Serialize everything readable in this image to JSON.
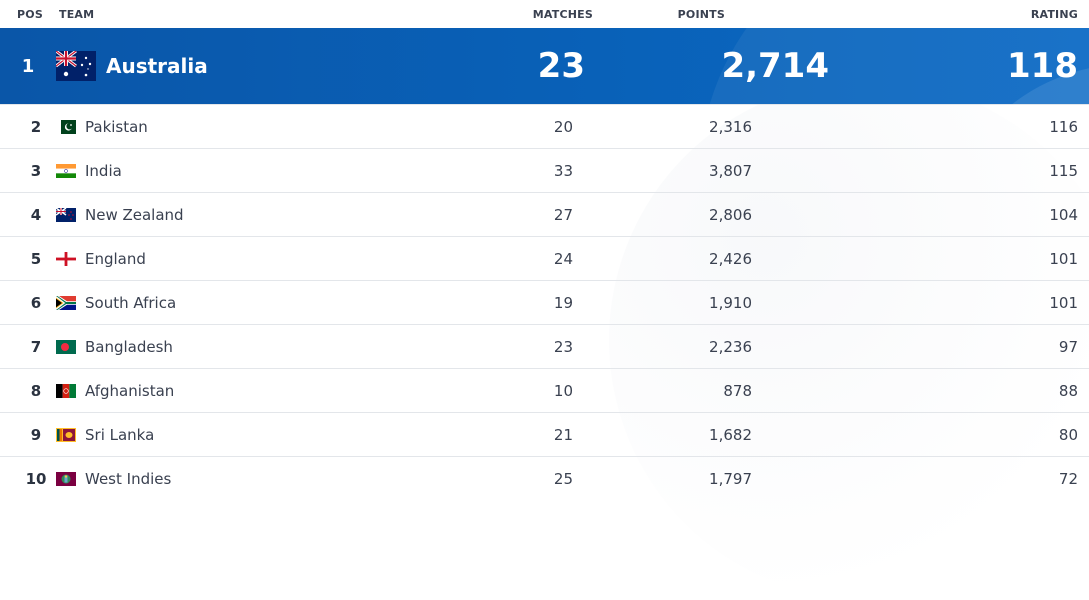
{
  "header": {
    "pos": "POS",
    "team": "TEAM",
    "matches": "MATCHES",
    "points": "POINTS",
    "rating": "RATING"
  },
  "leader": {
    "pos": "1",
    "team": "Australia",
    "flag_icon": "australia-flag-icon",
    "matches": "23",
    "points": "2,714",
    "rating": "118"
  },
  "rows": [
    {
      "pos": "2",
      "team": "Pakistan",
      "flag_icon": "pakistan-flag-icon",
      "matches": "20",
      "points": "2,316",
      "rating": "116"
    },
    {
      "pos": "3",
      "team": "India",
      "flag_icon": "india-flag-icon",
      "matches": "33",
      "points": "3,807",
      "rating": "115"
    },
    {
      "pos": "4",
      "team": "New Zealand",
      "flag_icon": "new-zealand-flag-icon",
      "matches": "27",
      "points": "2,806",
      "rating": "104"
    },
    {
      "pos": "5",
      "team": "England",
      "flag_icon": "england-flag-icon",
      "matches": "24",
      "points": "2,426",
      "rating": "101"
    },
    {
      "pos": "6",
      "team": "South Africa",
      "flag_icon": "south-africa-flag-icon",
      "matches": "19",
      "points": "1,910",
      "rating": "101"
    },
    {
      "pos": "7",
      "team": "Bangladesh",
      "flag_icon": "bangladesh-flag-icon",
      "matches": "23",
      "points": "2,236",
      "rating": "97"
    },
    {
      "pos": "8",
      "team": "Afghanistan",
      "flag_icon": "afghanistan-flag-icon",
      "matches": "10",
      "points": "878",
      "rating": "88"
    },
    {
      "pos": "9",
      "team": "Sri Lanka",
      "flag_icon": "sri-lanka-flag-icon",
      "matches": "21",
      "points": "1,682",
      "rating": "80"
    },
    {
      "pos": "10",
      "team": "West Indies",
      "flag_icon": "west-indies-flag-icon",
      "matches": "25",
      "points": "1,797",
      "rating": "72"
    }
  ],
  "colors": {
    "leader_bg": "#0a56a8",
    "row_divider": "#e3e6ea",
    "text": "#3a4150"
  }
}
